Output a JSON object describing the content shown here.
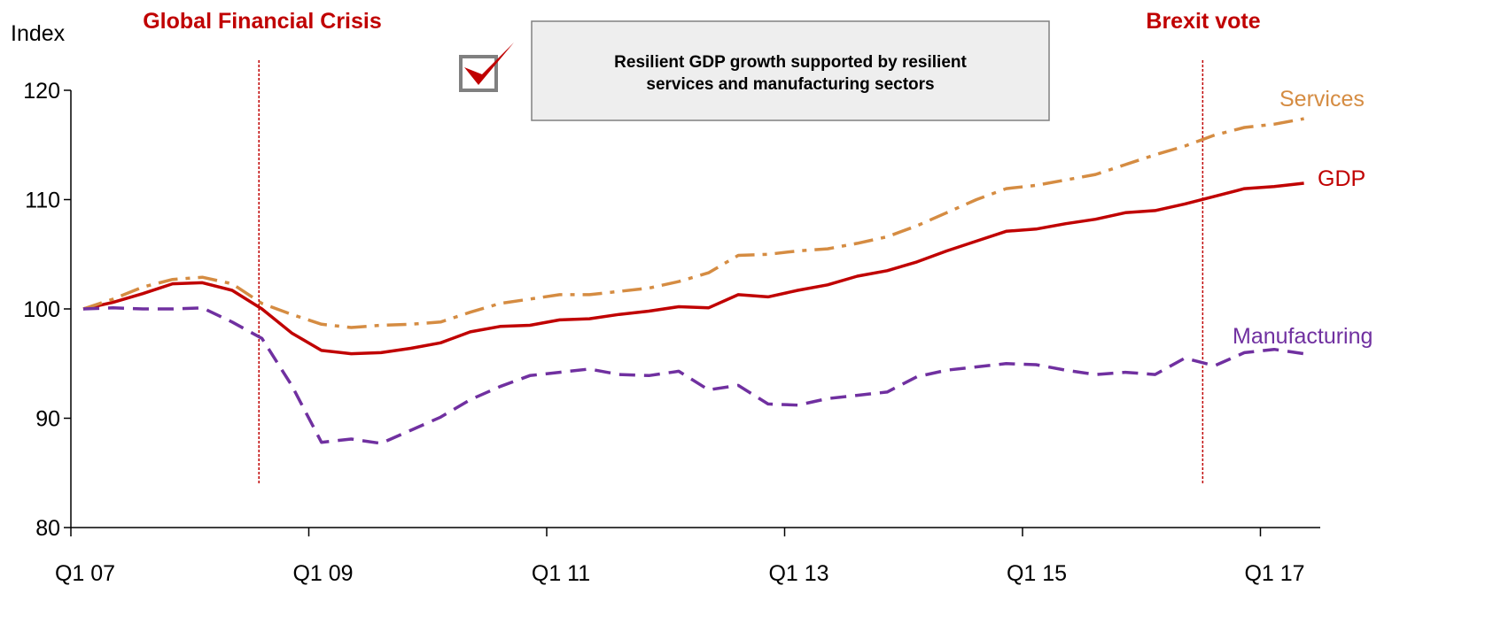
{
  "chart_data": {
    "type": "line",
    "ylabel": "Index",
    "ylim": [
      80,
      120
    ],
    "yticks": [
      80,
      90,
      100,
      110,
      120
    ],
    "x_tick_labels": [
      "Q1 07",
      "Q1 09",
      "Q1 11",
      "Q1 13",
      "Q1 15",
      "Q1 17"
    ],
    "x_start": "Q1 07",
    "series": [
      {
        "name": "GDP",
        "color": "#c00000",
        "style": "solid",
        "values": [
          100.0,
          100.6,
          101.4,
          102.3,
          102.4,
          101.7,
          100.0,
          97.8,
          96.2,
          95.9,
          96.0,
          96.4,
          96.9,
          97.9,
          98.4,
          98.5,
          99.0,
          99.1,
          99.5,
          99.8,
          100.2,
          100.1,
          101.3,
          101.1,
          101.7,
          102.2,
          103.0,
          103.5,
          104.3,
          105.3,
          106.2,
          107.1,
          107.3,
          107.8,
          108.2,
          108.8,
          109.0,
          109.6,
          110.3,
          111.0,
          111.2,
          111.5
        ]
      },
      {
        "name": "Services",
        "color": "#d58c42",
        "style": "dash-dot",
        "values": [
          100.0,
          100.9,
          102.0,
          102.7,
          102.9,
          102.3,
          100.5,
          99.5,
          98.6,
          98.3,
          98.5,
          98.6,
          98.8,
          99.7,
          100.5,
          100.9,
          101.3,
          101.3,
          101.6,
          101.9,
          102.5,
          103.3,
          104.9,
          105.0,
          105.3,
          105.5,
          106.0,
          106.6,
          107.6,
          108.8,
          110.0,
          111.0,
          111.3,
          111.8,
          112.3,
          113.2,
          114.1,
          114.9,
          115.9,
          116.6,
          116.9,
          117.4
        ]
      },
      {
        "name": "Manufacturing",
        "color": "#7030a0",
        "style": "dashed",
        "values": [
          100.0,
          100.1,
          100.0,
          100.0,
          100.1,
          98.8,
          97.3,
          93.0,
          87.8,
          88.1,
          87.7,
          88.9,
          90.1,
          91.7,
          92.9,
          93.9,
          94.2,
          94.5,
          94.0,
          93.9,
          94.3,
          92.6,
          93.0,
          91.3,
          91.2,
          91.8,
          92.1,
          92.4,
          93.8,
          94.4,
          94.7,
          95.0,
          94.9,
          94.4,
          94.0,
          94.2,
          94.0,
          95.5,
          94.8,
          96.0,
          96.3,
          95.9
        ]
      }
    ],
    "events": [
      {
        "label": "Global Financial Crisis",
        "x_index": 5.9
      },
      {
        "label": "Brexit vote",
        "x_index": 37.6
      }
    ],
    "legend": "inline at line ends",
    "grid": false
  },
  "callout": {
    "text_line1": "Resilient GDP growth supported by resilient",
    "text_line2": "services and manufacturing sectors",
    "icon": "checkbox-check-icon"
  }
}
